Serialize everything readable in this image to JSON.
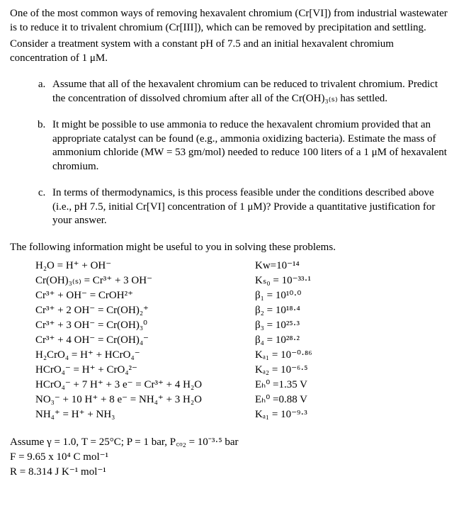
{
  "intro": {
    "p1": "One of the most common ways of removing hexavalent chromium (Cr[VI]) from industrial wastewater is to reduce it to trivalent chromium (Cr[III]), which can be removed by precipitation and settling.",
    "p2": "Consider a treatment system with a constant pH of 7.5 and an initial hexavalent chromium concentration of 1 μM."
  },
  "parts": {
    "a": "Assume that all of the hexavalent chromium can be reduced to trivalent chromium. Predict the concentration of dissolved chromium after all of the Cr(OH)₃₍ₛ₎ has settled.",
    "b": "It might be possible to use ammonia to reduce the hexavalent chromium provided that an appropriate catalyst can be found (e.g., ammonia oxidizing bacteria). Estimate the mass of ammonium chloride (MW = 53 gm/mol) needed to reduce 100 liters of a 1 μM of hexavalent chromium.",
    "c": "In terms of thermodynamics, is this process feasible under the conditions described above (i.e., pH 7.5, initial Cr[VI] concentration of 1 μM)? Provide a quantitative justification for your answer."
  },
  "infoHeader": "The following information might be useful to you in solving these problems.",
  "eqLeft": {
    "l1": "H₂O = H⁺ + OH⁻",
    "l2": "Cr(OH)₃₍ₛ₎ = Cr³⁺ + 3 OH⁻",
    "l3": "Cr³⁺ + OH⁻ = CrOH²⁺",
    "l4": "Cr³⁺ + 2 OH⁻ = Cr(OH)₂⁺",
    "l5": "Cr³⁺ + 3 OH⁻ = Cr(OH)₃⁰",
    "l6": "Cr³⁺ + 4 OH⁻ = Cr(OH)₄⁻",
    "l7": "H₂CrO₄ = H⁺ + HCrO₄⁻",
    "l8": "HCrO₄⁻ = H⁺ + CrO₄²⁻",
    "l9": "HCrO₄⁻ + 7 H⁺ + 3 e⁻ = Cr³⁺ + 4 H₂O",
    "l10": "NO₃⁻ + 10 H⁺ + 8 e⁻ = NH₄⁺ + 3 H₂O",
    "l11": "NH₄⁺ = H⁺ + NH₃"
  },
  "eqRight": {
    "r1": "Kᴡ=10⁻¹⁴",
    "r2": "Kₛ₀ = 10⁻³³·¹",
    "r3": "β₁ = 10¹⁰·⁰",
    "r4": "β₂ = 10¹⁸·⁴",
    "r5": "β₃ = 10²⁵·³",
    "r6": "β₄ = 10²⁸·²",
    "r7": "Kₐ₁ = 10⁻⁰·⁸⁶",
    "r8": "Kₐ₂ = 10⁻⁶·⁵",
    "r9": "Eₕ⁰ =1.35 V",
    "r10": "Eₕ⁰ =0.88 V",
    "r11": "Kₐ₁ = 10⁻⁹·³"
  },
  "assume": {
    "a1": "Assume γ = 1.0, T = 25°C;  P = 1 bar, P꜀ₒ₂ = 10⁻³·⁵ bar",
    "a2": "F = 9.65 x 10⁴ C mol⁻¹",
    "a3": "R = 8.314 J K⁻¹ mol⁻¹"
  }
}
